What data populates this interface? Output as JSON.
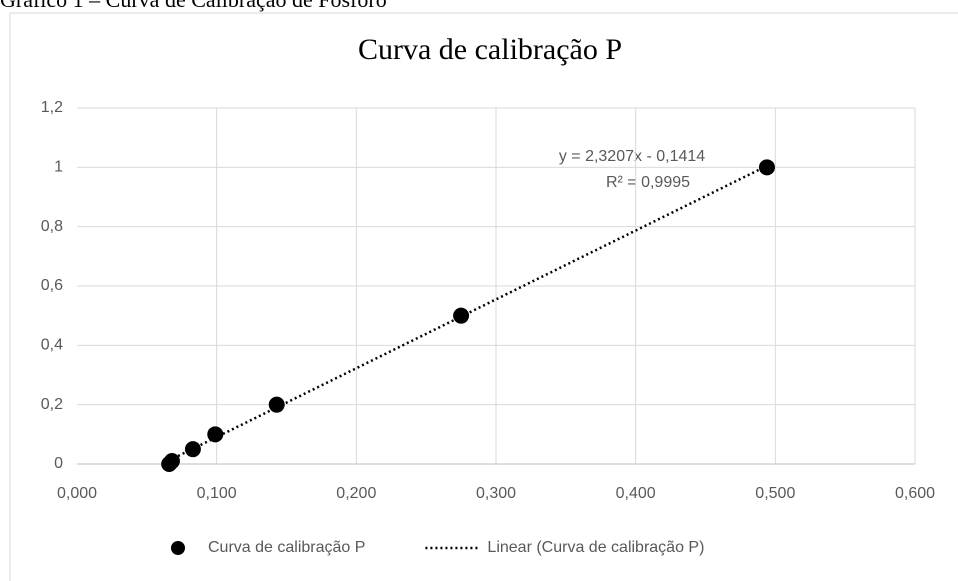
{
  "caption": "Gráfico 1 – Curva de Calibração de Fósforo",
  "chart_data": {
    "type": "scatter",
    "title": "Curva de calibração P",
    "series": [
      {
        "name": "Curva de calibração P",
        "color": "#000000",
        "x": [
          0.066,
          0.068,
          0.083,
          0.099,
          0.143,
          0.275,
          0.494
        ],
        "values": [
          0,
          0.01,
          0.05,
          0.1,
          0.2,
          0.5,
          1.0
        ]
      },
      {
        "name": "Linear (Curva de calibração P)",
        "color": "#000000",
        "style": "dotted",
        "x": [
          0.066,
          0.494
        ],
        "values": [
          0.012,
          1.005
        ]
      }
    ],
    "annotations": [
      "y = 2,3207x - 0,1414",
      "R² = 0,9995"
    ],
    "xlim": [
      0,
      0.6
    ],
    "xticks": [
      {
        "value": 0,
        "label": "0,000"
      },
      {
        "value": 0.1,
        "label": "0,100"
      },
      {
        "value": 0.2,
        "label": "0,200"
      },
      {
        "value": 0.3,
        "label": "0,300"
      },
      {
        "value": 0.4,
        "label": "0,400"
      },
      {
        "value": 0.5,
        "label": "0,500"
      },
      {
        "value": 0.6,
        "label": "0,600"
      }
    ],
    "ylim": [
      0,
      1.2
    ],
    "yticks": [
      0,
      {
        "value": 0.2,
        "label": "0,2"
      },
      {
        "value": 0.4,
        "label": "0,4"
      },
      {
        "value": 0.6,
        "label": "0,6"
      },
      {
        "value": 0.8,
        "label": "0,8"
      },
      1,
      {
        "value": 1.2,
        "label": "1,2"
      }
    ],
    "grid": true,
    "legend": "bottom"
  }
}
